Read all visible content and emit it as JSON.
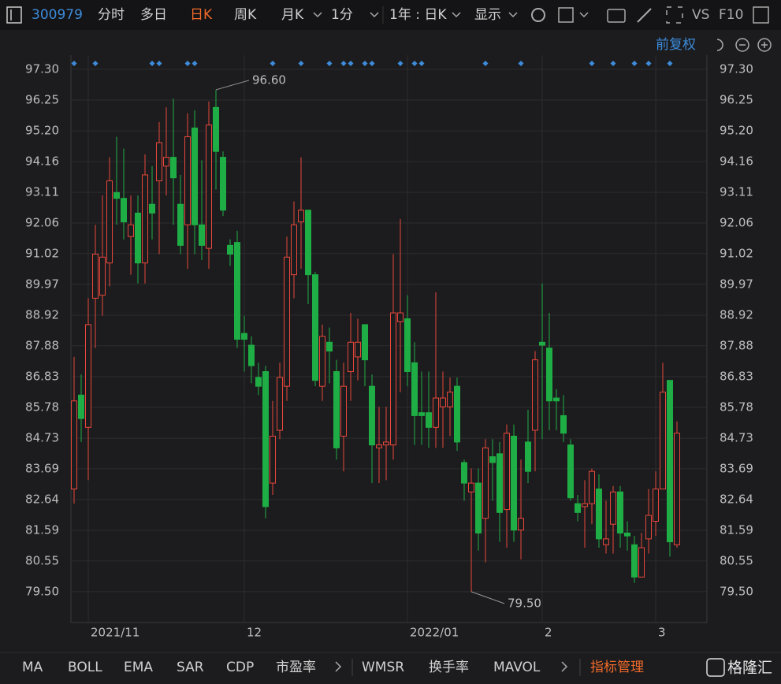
{
  "toolbar": {
    "code": "300979",
    "tabs": [
      "分时",
      "多日",
      "日K",
      "周K",
      "月K",
      "1分",
      "1年 : 日K",
      "显示"
    ],
    "extra": [
      "VS",
      "F10"
    ],
    "adjust": "前复权"
  },
  "indicators": [
    "MA",
    "BOLL",
    "EMA",
    "SAR",
    "CDP",
    "市盈率",
    "WMSR",
    "换手率",
    "MAVOL",
    "指标管理"
  ],
  "watermark": "格隆汇",
  "chart_data": {
    "type": "candlestick",
    "up_color": "#e8473a",
    "down_color": "#1fae45",
    "categories": [
      null,
      null,
      "2021/11",
      null,
      null,
      null,
      null,
      null,
      null,
      null,
      null,
      null,
      null,
      null,
      null,
      null,
      null,
      null,
      null,
      null,
      null,
      null,
      null,
      null,
      "12",
      null,
      null,
      null,
      null,
      null,
      null,
      null,
      null,
      null,
      null,
      null,
      null,
      null,
      null,
      null,
      null,
      null,
      null,
      null,
      null,
      null,
      null,
      "2022/01",
      null,
      null,
      null,
      null,
      null,
      null,
      null,
      null,
      null,
      null,
      null,
      null,
      null,
      null,
      null,
      null,
      null,
      null,
      "2",
      null,
      null,
      null,
      null,
      null,
      null,
      null,
      null,
      null,
      null,
      null,
      null,
      null,
      null,
      null,
      "3",
      null,
      null,
      null
    ],
    "open": [
      83.0,
      86.2,
      85.1,
      89.5,
      89.6,
      90.7,
      93.1,
      92.9,
      91.6,
      92.4,
      90.7,
      92.7,
      93.5,
      94.0,
      94.3,
      92.7,
      92.0,
      95.3,
      92.0,
      91.2,
      96.0,
      94.3,
      91.3,
      91.4,
      88.3,
      87.9,
      86.8,
      87.0,
      83.2,
      85.0,
      86.5,
      90.3,
      92.1,
      92.5,
      90.3,
      86.5,
      88.0,
      87.0,
      84.8,
      87.0,
      87.5,
      88.6,
      86.5,
      84.4,
      84.5,
      84.5,
      88.7,
      88.8,
      87.3,
      85.6,
      85.6,
      85.1,
      85.8,
      85.8,
      86.5,
      83.9,
      82.9,
      83.2,
      82.0,
      84.1,
      84.2,
      82.3,
      84.8,
      81.6,
      84.6,
      85.0,
      88.0,
      87.8,
      86.1,
      85.5,
      84.5,
      82.5,
      82.4,
      82.5,
      83.0,
      81.1,
      81.8,
      82.9,
      81.5,
      81.1,
      80.0,
      81.3,
      81.9,
      83.0,
      86.7,
      81.1
    ],
    "high": [
      87.5,
      86.9,
      89.5,
      92.0,
      93.0,
      94.3,
      95.0,
      94.6,
      93.0,
      93.0,
      94.4,
      94.0,
      95.5,
      96.0,
      96.3,
      93.7,
      95.8,
      95.9,
      94.2,
      96.2,
      96.6,
      94.5,
      91.5,
      91.8,
      88.9,
      88.2,
      87.3,
      87.2,
      86.0,
      87.3,
      91.6,
      92.8,
      94.3,
      92.5,
      90.4,
      88.6,
      88.5,
      87.4,
      87.3,
      89.0,
      88.8,
      88.6,
      86.9,
      85.8,
      85.8,
      91.0,
      92.2,
      89.6,
      88.0,
      87.0,
      87.0,
      89.7,
      87.0,
      86.8,
      86.8,
      84.0,
      83.7,
      83.7,
      84.7,
      84.7,
      84.6,
      85.2,
      85.2,
      84.0,
      85.7,
      87.7,
      90.0,
      89.0,
      86.4,
      86.2,
      84.7,
      82.8,
      83.3,
      83.7,
      83.5,
      82.6,
      83.1,
      83.1,
      81.9,
      81.4,
      81.5,
      83.0,
      83.6,
      87.3,
      86.7,
      85.3
    ],
    "low": [
      82.5,
      84.6,
      83.3,
      87.8,
      88.9,
      89.9,
      92.0,
      91.5,
      90.3,
      90.0,
      90.0,
      91.5,
      91.0,
      93.0,
      92.0,
      91.0,
      90.5,
      91.0,
      90.8,
      90.5,
      93.2,
      92.3,
      90.6,
      87.8,
      87.0,
      86.6,
      86.2,
      82.0,
      82.8,
      84.7,
      86.0,
      89.5,
      90.5,
      89.3,
      86.5,
      86.0,
      86.6,
      84.0,
      83.6,
      86.0,
      86.7,
      86.5,
      83.2,
      83.2,
      83.3,
      84.0,
      86.3,
      86.5,
      84.5,
      84.5,
      84.4,
      84.4,
      84.4,
      84.8,
      84.3,
      82.6,
      79.5,
      80.9,
      80.5,
      82.6,
      81.2,
      81.0,
      81.2,
      80.6,
      83.2,
      83.6,
      84.7,
      85.0,
      85.0,
      84.6,
      82.6,
      81.9,
      81.0,
      81.8,
      81.0,
      80.8,
      80.8,
      81.0,
      80.9,
      79.8,
      80.0,
      80.8,
      81.4,
      83.0,
      80.7,
      81.0
    ],
    "close": [
      86.0,
      85.4,
      88.6,
      91.0,
      90.9,
      93.5,
      92.9,
      92.1,
      92.0,
      90.7,
      93.7,
      92.4,
      94.8,
      94.3,
      93.6,
      91.3,
      95.0,
      92.0,
      91.3,
      95.4,
      94.5,
      92.5,
      91.0,
      88.1,
      88.1,
      87.2,
      86.5,
      82.4,
      84.8,
      86.8,
      90.9,
      92.0,
      92.5,
      90.3,
      86.7,
      88.2,
      87.7,
      84.4,
      86.5,
      88.0,
      88.0,
      87.4,
      84.5,
      84.5,
      84.6,
      89.0,
      89.0,
      87.0,
      85.5,
      85.5,
      85.1,
      86.1,
      86.1,
      86.3,
      84.6,
      83.2,
      83.2,
      81.5,
      84.4,
      83.9,
      82.2,
      84.9,
      81.6,
      82.0,
      83.6,
      87.4,
      87.9,
      86.0,
      86.0,
      84.9,
      82.7,
      82.2,
      82.5,
      83.6,
      81.3,
      81.3,
      82.9,
      81.5,
      81.4,
      80.0,
      81.0,
      82.1,
      83.0,
      86.3,
      81.2,
      84.9
    ],
    "ylim": [
      78.45,
      97.78
    ],
    "yticks": [
      {
        "value": 97.3,
        "label": "97.30"
      },
      {
        "value": 96.25,
        "label": "96.25"
      },
      {
        "value": 95.2,
        "label": "95.20"
      },
      {
        "value": 94.16,
        "label": "94.16"
      },
      {
        "value": 93.11,
        "label": "93.11"
      },
      {
        "value": 92.06,
        "label": "92.06"
      },
      {
        "value": 91.02,
        "label": "91.02"
      },
      {
        "value": 89.97,
        "label": "89.97"
      },
      {
        "value": 88.92,
        "label": "88.92"
      },
      {
        "value": 87.88,
        "label": "87.88"
      },
      {
        "value": 86.83,
        "label": "86.83"
      },
      {
        "value": 85.78,
        "label": "85.78"
      },
      {
        "value": 84.73,
        "label": "84.73"
      },
      {
        "value": 83.69,
        "label": "83.69"
      },
      {
        "value": 82.64,
        "label": "82.64"
      },
      {
        "value": 81.59,
        "label": "81.59"
      },
      {
        "value": 80.55,
        "label": "80.55"
      },
      {
        "value": 79.5,
        "label": "79.50"
      }
    ],
    "annotations": [
      {
        "value": 96.6,
        "label": "96.60"
      },
      {
        "value": 79.5,
        "label": "79.50"
      }
    ],
    "grid": true
  }
}
